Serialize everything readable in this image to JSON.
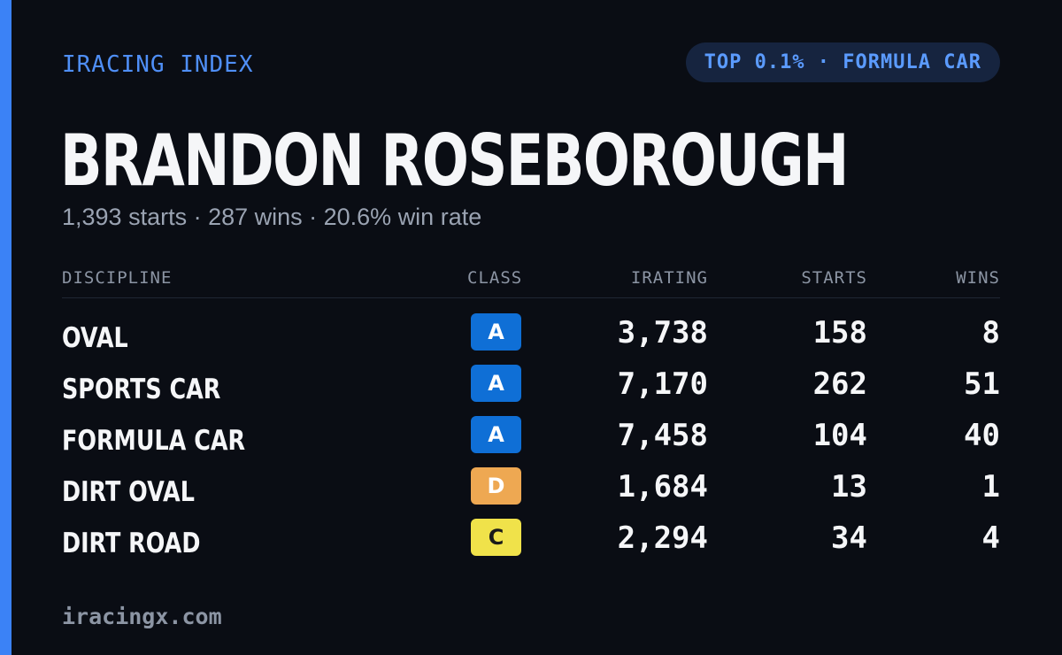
{
  "header": {
    "brand": "IRACING INDEX",
    "badge": "TOP 0.1% · FORMULA CAR"
  },
  "driver": {
    "name": "BRANDON ROSEBOROUGH",
    "summary": "1,393 starts · 287 wins · 20.6% win rate"
  },
  "table": {
    "columns": {
      "discipline": "DISCIPLINE",
      "class": "CLASS",
      "irating": "IRATING",
      "starts": "STARTS",
      "wins": "WINS"
    },
    "rows": [
      {
        "discipline": "OVAL",
        "class": "A",
        "class_bg": "#0f6fd6",
        "class_fg": "#ffffff",
        "irating": "3,738",
        "starts": "158",
        "wins": "8"
      },
      {
        "discipline": "SPORTS CAR",
        "class": "A",
        "class_bg": "#0f6fd6",
        "class_fg": "#ffffff",
        "irating": "7,170",
        "starts": "262",
        "wins": "51"
      },
      {
        "discipline": "FORMULA CAR",
        "class": "A",
        "class_bg": "#0f6fd6",
        "class_fg": "#ffffff",
        "irating": "7,458",
        "starts": "104",
        "wins": "40"
      },
      {
        "discipline": "DIRT OVAL",
        "class": "D",
        "class_bg": "#eea852",
        "class_fg": "#ffffff",
        "irating": "1,684",
        "starts": "13",
        "wins": "1"
      },
      {
        "discipline": "DIRT ROAD",
        "class": "C",
        "class_bg": "#f0e24a",
        "class_fg": "#1a1a1a",
        "irating": "2,294",
        "starts": "34",
        "wins": "4"
      }
    ]
  },
  "footer": {
    "site": "iracingx.com"
  },
  "colors": {
    "background": "#0a0d14",
    "accent": "#3b82f6",
    "brand_text": "#4f8ff7",
    "pill_bg": "#16243f",
    "muted_text": "#9aa3b2"
  }
}
